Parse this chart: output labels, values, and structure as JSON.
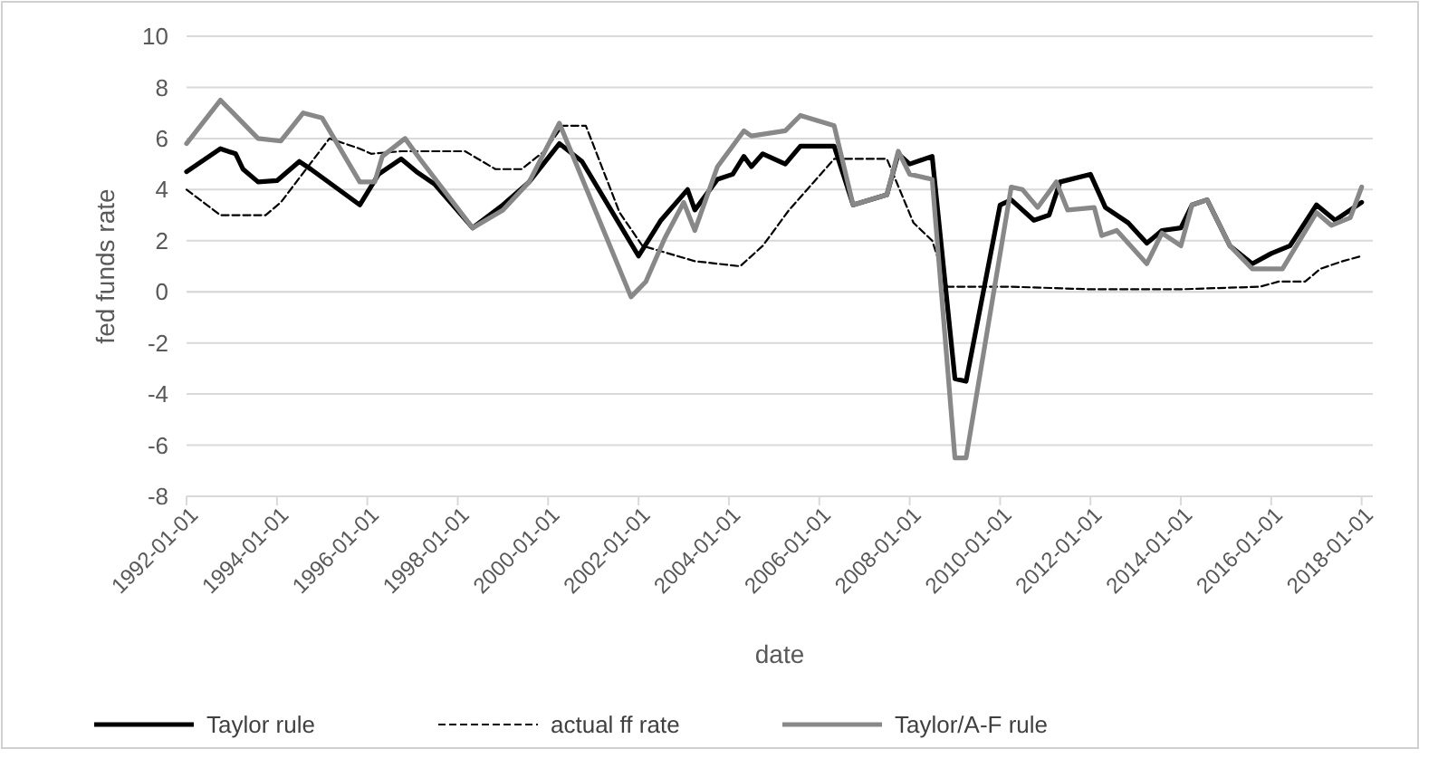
{
  "chart_data": {
    "type": "line",
    "xlabel": "date",
    "ylabel": "fed funds rate",
    "xlim": [
      "1992-01-01",
      "2018-04-01"
    ],
    "ylim": [
      -8,
      10
    ],
    "yticks": [
      -8,
      -6,
      -4,
      -2,
      0,
      2,
      4,
      6,
      8,
      10
    ],
    "xticks": [
      {
        "value": "1992-01-01",
        "label": "1992-01-01"
      },
      {
        "value": "1994-01-01",
        "label": "1994-01-01"
      },
      {
        "value": "1996-01-01",
        "label": "1996-01-01"
      },
      {
        "value": "1998-01-01",
        "label": "1998-01-01"
      },
      {
        "value": "2000-01-01",
        "label": "2000-01-01"
      },
      {
        "value": "2002-01-01",
        "label": "2002-01-01"
      },
      {
        "value": "2004-01-01",
        "label": "2004-01-01"
      },
      {
        "value": "2006-01-01",
        "label": "2006-01-01"
      },
      {
        "value": "2008-01-01",
        "label": "2008-01-01"
      },
      {
        "value": "2010-01-01",
        "label": "2010-01-01"
      },
      {
        "value": "2012-01-01",
        "label": "2012-01-01"
      },
      {
        "value": "2014-01-01",
        "label": "2014-01-01"
      },
      {
        "value": "2016-01-01",
        "label": "2016-01-01"
      },
      {
        "value": "2018-01-01",
        "label": "2018-01-01"
      }
    ],
    "grid": "y",
    "legend": "bottom",
    "marker": "none",
    "series": [
      {
        "name": "Taylor rule",
        "color": "#000000",
        "line_style": "solid",
        "x": [
          "1992-01",
          "1992-10",
          "1993-02",
          "1993-04",
          "1993-08",
          "1994-01",
          "1994-07",
          "1994-10",
          "1995-11",
          "1996-04",
          "1996-10",
          "1997-02",
          "1997-07",
          "1998-05",
          "1999-01",
          "1999-08",
          "2000-04",
          "2000-10",
          "2002-01",
          "2002-07",
          "2003-02",
          "2003-04",
          "2003-10",
          "2004-02",
          "2004-05",
          "2004-07",
          "2004-10",
          "2005-04",
          "2005-08",
          "2006-05",
          "2006-10",
          "2007-07",
          "2007-10",
          "2008-01",
          "2008-07",
          "2009-01",
          "2009-04",
          "2010-01",
          "2010-04",
          "2010-10",
          "2011-02",
          "2011-05",
          "2012-01",
          "2012-05",
          "2012-11",
          "2013-04",
          "2013-08",
          "2014-01",
          "2014-04",
          "2014-08",
          "2015-02",
          "2015-08",
          "2016-01",
          "2016-06",
          "2017-01",
          "2017-06",
          "2018-01"
        ],
        "values": [
          4.7,
          5.6,
          5.4,
          4.8,
          4.3,
          4.35,
          5.1,
          4.8,
          3.4,
          4.6,
          5.2,
          4.7,
          4.2,
          2.5,
          3.4,
          4.3,
          5.8,
          5.1,
          1.4,
          2.8,
          4.0,
          3.2,
          4.4,
          4.6,
          5.3,
          4.9,
          5.4,
          5.0,
          5.7,
          5.7,
          3.4,
          3.8,
          5.4,
          5.0,
          5.3,
          -3.4,
          -3.5,
          3.4,
          3.6,
          2.8,
          3.0,
          4.3,
          4.6,
          3.3,
          2.7,
          1.9,
          2.4,
          2.5,
          3.4,
          3.6,
          1.8,
          1.1,
          1.5,
          1.8,
          3.4,
          2.8,
          3.5
        ]
      },
      {
        "name": "actual ff rate",
        "color": "#000000",
        "line_style": "dashed",
        "x": [
          "1992-01",
          "1992-10",
          "1993-10",
          "1994-02",
          "1995-03",
          "1995-11",
          "1996-02",
          "1996-10",
          "1998-03",
          "1998-11",
          "1999-06",
          "1999-12",
          "2000-05",
          "2000-11",
          "2001-08",
          "2002-02",
          "2003-04",
          "2004-04",
          "2004-10",
          "2005-05",
          "2006-05",
          "2007-07",
          "2008-02",
          "2008-07",
          "2008-11",
          "2010-04",
          "2012-01",
          "2014-01",
          "2015-10",
          "2016-03",
          "2016-10",
          "2017-02",
          "2017-08",
          "2018-01"
        ],
        "values": [
          4.0,
          3.0,
          3.0,
          3.5,
          6.0,
          5.6,
          5.4,
          5.5,
          5.5,
          4.8,
          4.8,
          5.5,
          6.5,
          6.5,
          3.1,
          1.8,
          1.2,
          1.0,
          1.8,
          3.2,
          5.2,
          5.2,
          2.7,
          2.0,
          0.2,
          0.2,
          0.1,
          0.1,
          0.2,
          0.4,
          0.4,
          0.9,
          1.2,
          1.4
        ]
      },
      {
        "name": "Taylor/A-F rule",
        "color": "#888888",
        "line_style": "solid",
        "x": [
          "1992-01",
          "1992-10",
          "1993-08",
          "1994-02",
          "1994-08",
          "1995-01",
          "1995-11",
          "1996-03",
          "1996-05",
          "1996-11",
          "1997-03",
          "1998-05",
          "1999-01",
          "1999-08",
          "2000-04",
          "2001-11",
          "2002-03",
          "2002-08",
          "2003-01",
          "2003-04",
          "2003-10",
          "2004-05",
          "2004-07",
          "2005-04",
          "2005-08",
          "2006-05",
          "2006-10",
          "2007-07",
          "2007-10",
          "2008-01",
          "2008-07",
          "2009-01",
          "2009-04",
          "2010-04",
          "2010-07",
          "2010-11",
          "2011-04",
          "2011-07",
          "2012-02",
          "2012-04",
          "2012-08",
          "2013-04",
          "2013-08",
          "2014-01",
          "2014-04",
          "2014-08",
          "2015-02",
          "2015-08",
          "2016-04",
          "2017-01",
          "2017-05",
          "2017-10",
          "2018-01"
        ],
        "values": [
          5.8,
          7.5,
          6.0,
          5.9,
          7.0,
          6.8,
          4.3,
          4.3,
          5.3,
          6.0,
          5.2,
          2.5,
          3.2,
          4.3,
          6.6,
          -0.2,
          0.4,
          2.1,
          3.5,
          2.4,
          4.9,
          6.3,
          6.1,
          6.3,
          6.9,
          6.5,
          3.4,
          3.8,
          5.5,
          4.6,
          4.4,
          -6.5,
          -6.5,
          4.1,
          4.0,
          3.3,
          4.3,
          3.2,
          3.3,
          2.2,
          2.4,
          1.1,
          2.3,
          1.8,
          3.4,
          3.6,
          1.8,
          0.9,
          0.9,
          3.1,
          2.6,
          2.9,
          4.1
        ]
      }
    ]
  }
}
